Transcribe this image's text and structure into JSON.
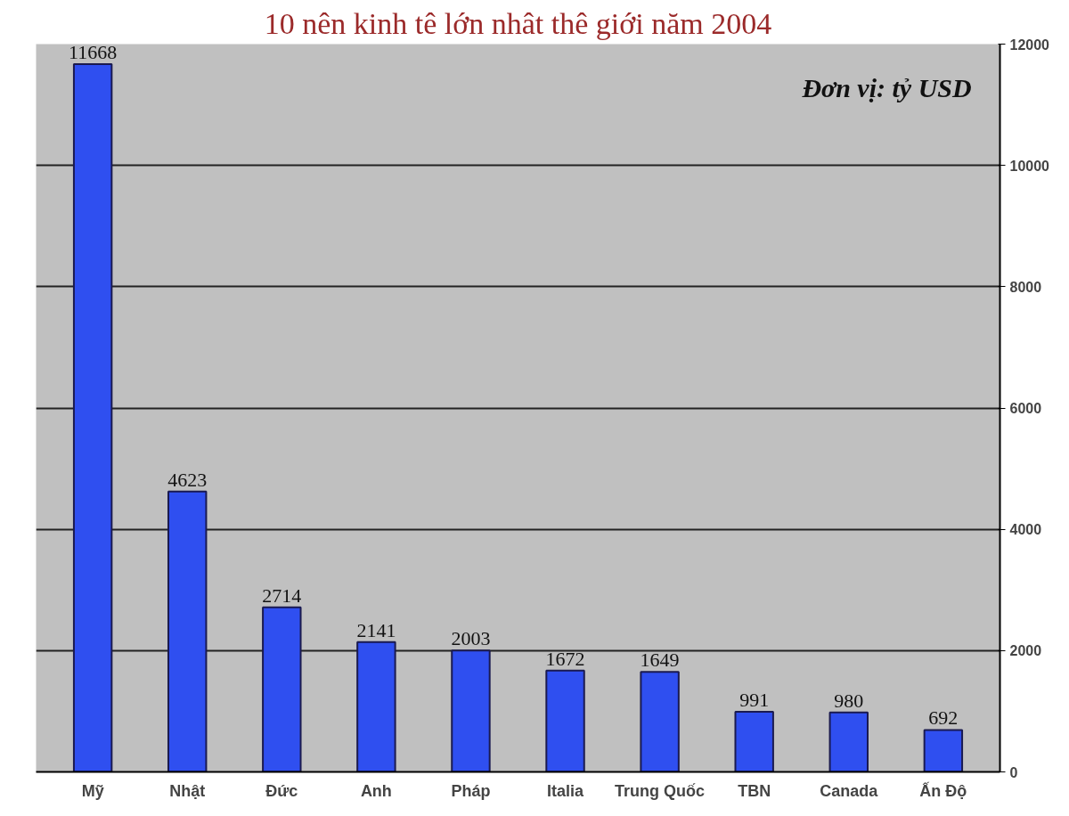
{
  "chart_data": {
    "type": "bar",
    "title": "10 nên kinh tê lớn nhât thê giới năm 2004",
    "categories": [
      "Mỹ",
      "Nhật",
      "Đức",
      "Anh",
      "Pháp",
      "Italia",
      "Trung Quốc",
      "TBN",
      "Canada",
      "Ấn Độ"
    ],
    "values": [
      11668,
      4623,
      2714,
      2141,
      2003,
      1672,
      1649,
      991,
      980,
      692
    ],
    "color": "#2f4ff0",
    "ylim": [
      0,
      12000
    ],
    "yticks": [
      0,
      2000,
      4000,
      6000,
      8000,
      10000,
      12000
    ],
    "grid": "y",
    "data_labels": true,
    "annotations": [
      "Đơn vị: tỷ USD"
    ]
  }
}
